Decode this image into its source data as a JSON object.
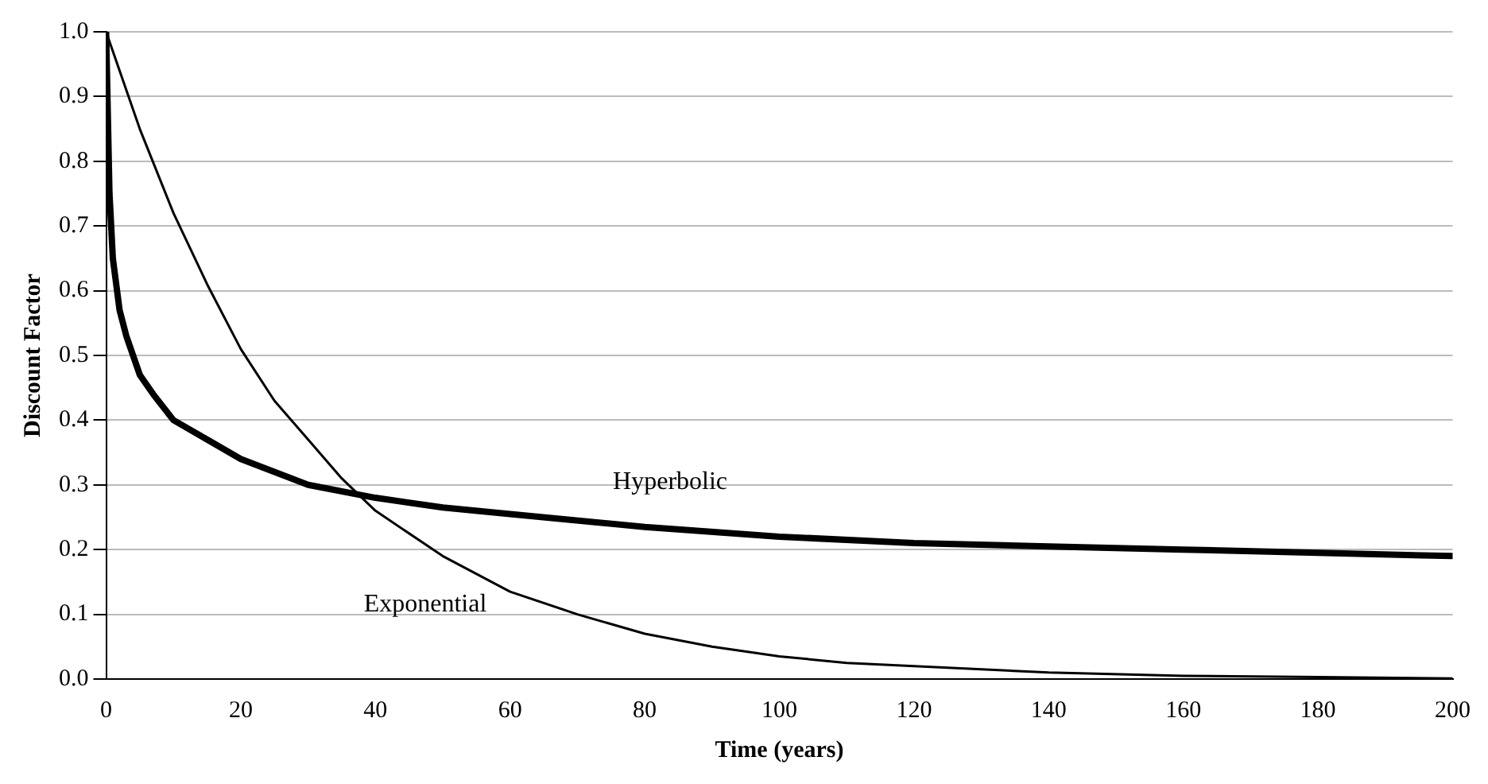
{
  "chart_data": {
    "type": "line",
    "xlabel": "Time (years)",
    "ylabel": "Discount Factor",
    "xlim": [
      0,
      200
    ],
    "xticks": [
      0,
      20,
      40,
      60,
      80,
      100,
      120,
      140,
      160,
      180,
      200
    ],
    "ylim": [
      0,
      1
    ],
    "yticks": [
      {
        "value": 0,
        "label": "0.0"
      },
      {
        "value": 0.1,
        "label": "0.1"
      },
      {
        "value": 0.2,
        "label": "0.2"
      },
      {
        "value": 0.3,
        "label": "0.3"
      },
      {
        "value": 0.4,
        "label": "0.4"
      },
      {
        "value": 0.5,
        "label": "0.5"
      },
      {
        "value": 0.6,
        "label": "0.6"
      },
      {
        "value": 0.7,
        "label": "0.7"
      },
      {
        "value": 0.8,
        "label": "0.8"
      },
      {
        "value": 0.9,
        "label": "0.9"
      },
      {
        "value": 1,
        "label": "1.0"
      }
    ],
    "grid": "y",
    "legend": false,
    "marker": "none",
    "series": [
      {
        "name": "Hyperbolic",
        "color": "#000000",
        "line_style": "solid",
        "x": [
          0,
          0.5,
          1,
          2,
          3,
          5,
          7,
          10,
          15,
          20,
          30,
          40,
          50,
          60,
          80,
          100,
          120,
          140,
          160,
          180,
          200
        ],
        "values": [
          1.0,
          0.75,
          0.65,
          0.57,
          0.53,
          0.47,
          0.44,
          0.4,
          0.37,
          0.34,
          0.3,
          0.28,
          0.265,
          0.255,
          0.235,
          0.22,
          0.21,
          0.205,
          0.2,
          0.195,
          0.19
        ]
      },
      {
        "name": "Exponential",
        "color": "#000000",
        "line_style": "solid",
        "x": [
          0,
          5,
          10,
          15,
          20,
          25,
          30,
          35,
          40,
          50,
          60,
          70,
          80,
          90,
          100,
          110,
          120,
          140,
          160,
          180,
          200
        ],
        "values": [
          1.0,
          0.85,
          0.72,
          0.61,
          0.51,
          0.43,
          0.37,
          0.31,
          0.26,
          0.19,
          0.135,
          0.1,
          0.07,
          0.05,
          0.035,
          0.025,
          0.02,
          0.01,
          0.005,
          0.003,
          0.001
        ]
      }
    ]
  }
}
